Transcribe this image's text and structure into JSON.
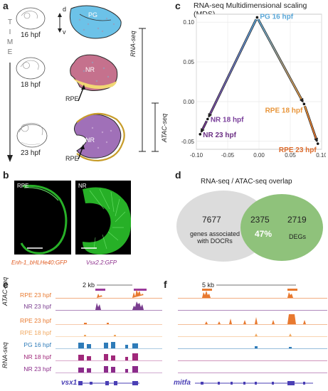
{
  "panels": {
    "a": "a",
    "b": "b",
    "c": "c",
    "d": "d",
    "e": "e",
    "f": "f"
  },
  "panel_a": {
    "time_letters": [
      "T",
      "I",
      "M",
      "E"
    ],
    "stages": [
      "16 hpf",
      "18 hpf",
      "23 hpf"
    ],
    "axis_d": "d",
    "axis_v": "v",
    "pg_label": "PG",
    "nr_label": "NR",
    "rpe_label": "RPE",
    "rnaseq": "RNA-seq",
    "atacseq": "ATAC-seq"
  },
  "panel_b": {
    "left_label": "RPE",
    "right_label": "NR",
    "left_caption": "Enh-1_bHLHe40:GFP",
    "right_caption": "Vsx2.2:GFP"
  },
  "chart_data": {
    "type": "scatter",
    "title": "RNA-seq Multidimensional scaling (MDS)",
    "xlim": [
      -0.1,
      0.1
    ],
    "ylim": [
      -0.06,
      0.11
    ],
    "xticks": [
      "-0.10",
      "-0.05",
      "0.00",
      "0.05",
      "0.10"
    ],
    "yticks": [
      "0.10",
      "0.05",
      "0.00",
      "-0.05"
    ],
    "points": [
      {
        "label": "PG 16 hpf",
        "x": -0.003,
        "y": 0.106,
        "color": "#5aa7d8"
      },
      {
        "label": "RPE 18 hpf",
        "x": 0.072,
        "y": -0.003,
        "color": "#e8953a"
      },
      {
        "label": "RPE 23 hpf",
        "x": 0.094,
        "y": -0.053,
        "color": "#dd6a2a"
      },
      {
        "label": "NR 18 hpf",
        "x": -0.082,
        "y": -0.022,
        "color": "#7a3f9b"
      },
      {
        "label": "NR 23 hpf",
        "x": -0.094,
        "y": -0.041,
        "color": "#6b2f84"
      }
    ],
    "arrows": [
      [
        0,
        3
      ],
      [
        0,
        1
      ],
      [
        3,
        4
      ],
      [
        1,
        2
      ]
    ]
  },
  "panel_d": {
    "title": "RNA-seq / ATAC-seq overlap",
    "left_count": "7677",
    "left_caption_1": "genes associated",
    "left_caption_2": "with DOCRs",
    "overlap_count": "2375",
    "overlap_pct": "47%",
    "right_count": "2719",
    "right_caption": "DEGs"
  },
  "panel_e": {
    "scale": "2 kb",
    "gene": "vsx1",
    "atac_label": "ATAC-seq",
    "rna_label": "RNA-seq",
    "tracks": [
      "RPE 23 hpf",
      "NR 23 hpf",
      "RPE 23 hpf",
      "RPE 18 hpf",
      "PG 16 hpf",
      "NR 18 hpf",
      "NR 23 hpf"
    ]
  },
  "panel_f": {
    "scale": "5 kb",
    "gene": "mitfa"
  },
  "colors": {
    "pg": "#5aa7d8",
    "rpe23": "#e8792f",
    "rpe18": "#f0a860",
    "nr": "#8b2b8a",
    "nr_atac": "#7a3d8f",
    "venn_grey": "#dcdcdc",
    "venn_green": "#8fc27b"
  }
}
